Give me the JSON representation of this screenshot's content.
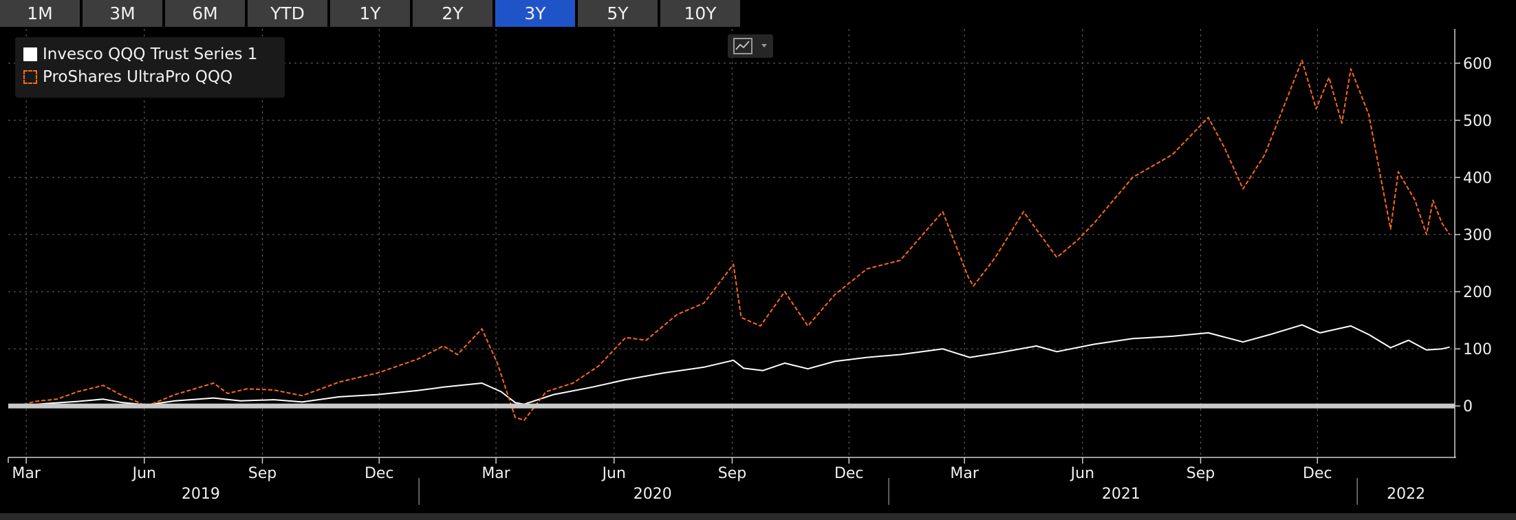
{
  "period_tabs": [
    {
      "label": "1M",
      "active": false
    },
    {
      "label": "3M",
      "active": false
    },
    {
      "label": "6M",
      "active": false
    },
    {
      "label": "YTD",
      "active": false
    },
    {
      "label": "1Y",
      "active": false
    },
    {
      "label": "2Y",
      "active": false
    },
    {
      "label": "3Y",
      "active": true
    },
    {
      "label": "5Y",
      "active": false
    },
    {
      "label": "10Y",
      "active": false
    }
  ],
  "legend": {
    "items": [
      {
        "label": "Invesco QQQ Trust Series 1",
        "color": "#ffffff",
        "style": "solid"
      },
      {
        "label": "ProShares UltraPro QQQ",
        "color": "#ff6a14",
        "style": "dashed"
      }
    ]
  },
  "chart_type_icon": "line-chart-icon",
  "colors": {
    "accent": "#1f54c9",
    "orange": "#ff6a14",
    "white": "#ffffff",
    "background": "#000000"
  },
  "chart_data": {
    "type": "line",
    "title": "",
    "xlabel": "",
    "ylabel": "",
    "ylim": [
      -90,
      660
    ],
    "y_ticks": [
      0,
      100,
      200,
      300,
      400,
      500,
      600
    ],
    "x_range": [
      "2019-02-15",
      "2022-03-18"
    ],
    "x_ticks": [
      {
        "label": "Mar",
        "date": "2019-03-01"
      },
      {
        "label": "Jun",
        "date": "2019-06-01"
      },
      {
        "label": "Sep",
        "date": "2019-09-01"
      },
      {
        "label": "Dec",
        "date": "2019-12-01"
      },
      {
        "label": "Mar",
        "date": "2020-03-01"
      },
      {
        "label": "Jun",
        "date": "2020-06-01"
      },
      {
        "label": "Sep",
        "date": "2020-09-01"
      },
      {
        "label": "Dec",
        "date": "2020-12-01"
      },
      {
        "label": "Mar",
        "date": "2021-03-01"
      },
      {
        "label": "Jun",
        "date": "2021-06-01"
      },
      {
        "label": "Sep",
        "date": "2021-09-01"
      },
      {
        "label": "Dec",
        "date": "2021-12-01"
      }
    ],
    "year_labels": [
      {
        "label": "2019",
        "center": "2019-07-15"
      },
      {
        "label": "2020",
        "center": "2020-07-01"
      },
      {
        "label": "2021",
        "center": "2021-07-01"
      },
      {
        "label": "2022",
        "center": "2022-02-08"
      }
    ],
    "year_dividers": [
      "2020-01-01",
      "2021-01-01",
      "2022-01-01"
    ],
    "grid": true,
    "legend_position": "top-left",
    "series": [
      {
        "name": "Invesco QQQ Trust Series 1",
        "color": "#ffffff",
        "style": "solid",
        "points": [
          [
            "2019-02-22",
            0
          ],
          [
            "2019-03-15",
            4
          ],
          [
            "2019-04-10",
            8
          ],
          [
            "2019-04-30",
            12
          ],
          [
            "2019-05-15",
            6
          ],
          [
            "2019-06-03",
            2
          ],
          [
            "2019-06-25",
            9
          ],
          [
            "2019-07-25",
            14
          ],
          [
            "2019-08-15",
            9
          ],
          [
            "2019-09-10",
            11
          ],
          [
            "2019-10-02",
            7
          ],
          [
            "2019-10-31",
            16
          ],
          [
            "2019-11-30",
            20
          ],
          [
            "2019-12-31",
            27
          ],
          [
            "2020-01-20",
            33
          ],
          [
            "2020-02-19",
            40
          ],
          [
            "2020-03-05",
            25
          ],
          [
            "2020-03-16",
            6
          ],
          [
            "2020-03-23",
            3
          ],
          [
            "2020-04-15",
            20
          ],
          [
            "2020-05-15",
            33
          ],
          [
            "2020-06-10",
            46
          ],
          [
            "2020-07-10",
            58
          ],
          [
            "2020-08-10",
            68
          ],
          [
            "2020-09-02",
            80
          ],
          [
            "2020-09-10",
            66
          ],
          [
            "2020-09-25",
            62
          ],
          [
            "2020-10-12",
            75
          ],
          [
            "2020-10-30",
            65
          ],
          [
            "2020-11-20",
            78
          ],
          [
            "2020-12-15",
            85
          ],
          [
            "2021-01-10",
            90
          ],
          [
            "2021-02-12",
            100
          ],
          [
            "2021-03-05",
            85
          ],
          [
            "2021-03-25",
            92
          ],
          [
            "2021-04-26",
            105
          ],
          [
            "2021-05-12",
            95
          ],
          [
            "2021-06-10",
            108
          ],
          [
            "2021-07-10",
            118
          ],
          [
            "2021-08-10",
            122
          ],
          [
            "2021-09-07",
            128
          ],
          [
            "2021-10-04",
            112
          ],
          [
            "2021-10-25",
            125
          ],
          [
            "2021-11-19",
            142
          ],
          [
            "2021-12-03",
            128
          ],
          [
            "2021-12-27",
            140
          ],
          [
            "2022-01-10",
            125
          ],
          [
            "2022-01-27",
            102
          ],
          [
            "2022-02-10",
            115
          ],
          [
            "2022-02-24",
            98
          ],
          [
            "2022-03-08",
            100
          ],
          [
            "2022-03-14",
            103
          ]
        ]
      },
      {
        "name": "ProShares UltraPro QQQ",
        "color": "#ff6a14",
        "style": "dashed",
        "points": [
          [
            "2019-02-22",
            0
          ],
          [
            "2019-03-08",
            8
          ],
          [
            "2019-03-25",
            12
          ],
          [
            "2019-04-10",
            25
          ],
          [
            "2019-04-30",
            36
          ],
          [
            "2019-05-15",
            18
          ],
          [
            "2019-06-03",
            0
          ],
          [
            "2019-06-25",
            20
          ],
          [
            "2019-07-25",
            40
          ],
          [
            "2019-08-05",
            22
          ],
          [
            "2019-08-20",
            30
          ],
          [
            "2019-09-10",
            28
          ],
          [
            "2019-10-02",
            18
          ],
          [
            "2019-10-31",
            42
          ],
          [
            "2019-11-30",
            58
          ],
          [
            "2019-12-31",
            82
          ],
          [
            "2020-01-20",
            105
          ],
          [
            "2020-01-31",
            90
          ],
          [
            "2020-02-19",
            135
          ],
          [
            "2020-03-02",
            75
          ],
          [
            "2020-03-09",
            28
          ],
          [
            "2020-03-16",
            -20
          ],
          [
            "2020-03-23",
            -25
          ],
          [
            "2020-04-09",
            25
          ],
          [
            "2020-04-30",
            40
          ],
          [
            "2020-05-20",
            70
          ],
          [
            "2020-06-10",
            120
          ],
          [
            "2020-06-26",
            115
          ],
          [
            "2020-07-20",
            160
          ],
          [
            "2020-08-10",
            180
          ],
          [
            "2020-09-02",
            248
          ],
          [
            "2020-09-08",
            155
          ],
          [
            "2020-09-23",
            140
          ],
          [
            "2020-10-12",
            200
          ],
          [
            "2020-10-30",
            140
          ],
          [
            "2020-11-20",
            195
          ],
          [
            "2020-12-15",
            240
          ],
          [
            "2021-01-10",
            255
          ],
          [
            "2021-02-12",
            340
          ],
          [
            "2021-03-04",
            225
          ],
          [
            "2021-03-08",
            210
          ],
          [
            "2021-03-25",
            260
          ],
          [
            "2021-04-16",
            340
          ],
          [
            "2021-05-12",
            260
          ],
          [
            "2021-05-28",
            290
          ],
          [
            "2021-06-10",
            320
          ],
          [
            "2021-07-10",
            400
          ],
          [
            "2021-08-10",
            440
          ],
          [
            "2021-09-07",
            505
          ],
          [
            "2021-09-20",
            450
          ],
          [
            "2021-10-04",
            380
          ],
          [
            "2021-10-21",
            440
          ],
          [
            "2021-11-19",
            605
          ],
          [
            "2021-11-30",
            520
          ],
          [
            "2021-12-10",
            575
          ],
          [
            "2021-12-20",
            495
          ],
          [
            "2021-12-27",
            590
          ],
          [
            "2022-01-10",
            510
          ],
          [
            "2022-01-21",
            380
          ],
          [
            "2022-01-27",
            310
          ],
          [
            "2022-02-02",
            410
          ],
          [
            "2022-02-15",
            360
          ],
          [
            "2022-02-24",
            300
          ],
          [
            "2022-03-01",
            360
          ],
          [
            "2022-03-08",
            320
          ],
          [
            "2022-03-14",
            300
          ]
        ]
      }
    ]
  }
}
